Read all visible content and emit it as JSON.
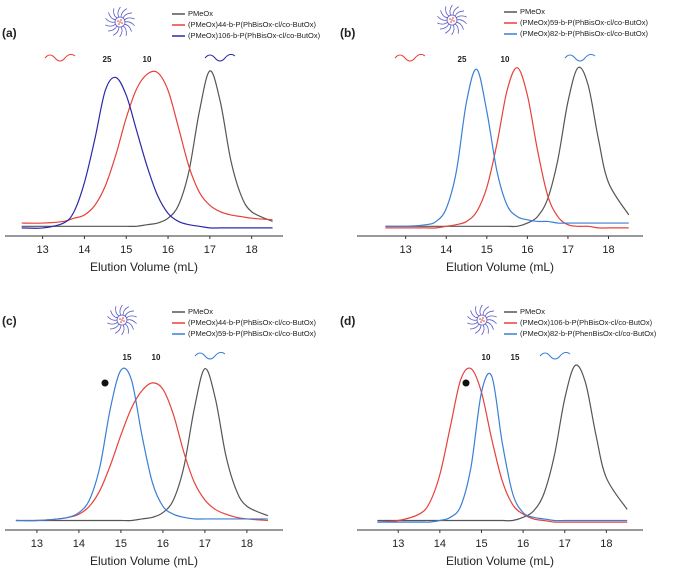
{
  "chart_data": [
    {
      "type": "line",
      "panel_label": "(a)",
      "xlabel": "Elution Volume (mL)",
      "xlim": [
        12.1,
        18.75
      ],
      "xticks": [
        13,
        14,
        15,
        16,
        17,
        18
      ],
      "ylim": [
        -0.05,
        1.05
      ],
      "x": [
        12.5,
        13,
        13.5,
        13.75,
        14,
        14.25,
        14.5,
        14.75,
        15,
        15.25,
        15.5,
        15.75,
        16,
        16.25,
        16.5,
        16.75,
        17,
        17.25,
        17.5,
        17.75,
        18,
        18.5
      ],
      "annotations": [
        "25",
        "10"
      ],
      "series": [
        {
          "name": "PMeOx",
          "color": "#555555",
          "values": [
            0.01,
            0.01,
            0.01,
            0.01,
            0.01,
            0.01,
            0.01,
            0.01,
            0.01,
            0.01,
            0.02,
            0.03,
            0.06,
            0.14,
            0.35,
            0.72,
            0.97,
            0.78,
            0.42,
            0.2,
            0.1,
            0.04
          ]
        },
        {
          "name": "(PMeOx)44-b-P(PhBisOx-cl/co-ButOx)",
          "color": "#e8403a",
          "values": [
            0.03,
            0.03,
            0.04,
            0.06,
            0.08,
            0.14,
            0.26,
            0.45,
            0.68,
            0.86,
            0.95,
            0.96,
            0.85,
            0.62,
            0.38,
            0.22,
            0.14,
            0.1,
            0.08,
            0.07,
            0.06,
            0.05
          ]
        },
        {
          "name": "(PMeOx)106-b-P(PhBisOx-cl/co-ButOx)",
          "color": "#2a2aa8",
          "values": [
            0,
            0,
            0.03,
            0.1,
            0.28,
            0.55,
            0.85,
            0.93,
            0.82,
            0.6,
            0.38,
            0.2,
            0.09,
            0.04,
            0.02,
            0.01,
            0,
            0,
            0,
            0,
            0,
            0
          ]
        }
      ]
    },
    {
      "type": "line",
      "panel_label": "(b)",
      "xlabel": "Elution Volume (mL)",
      "xlim": [
        11.8,
        18.85
      ],
      "xticks": [
        13,
        14,
        15,
        16,
        17,
        18
      ],
      "ylim": [
        -0.05,
        1.05
      ],
      "x": [
        12.5,
        13,
        13.5,
        13.75,
        14,
        14.25,
        14.5,
        14.75,
        15,
        15.25,
        15.5,
        15.75,
        16,
        16.25,
        16.5,
        16.75,
        17,
        17.25,
        17.5,
        17.75,
        18,
        18.5
      ],
      "annotations": [
        "25",
        "10"
      ],
      "series": [
        {
          "name": "PMeOx",
          "color": "#555555",
          "values": [
            0.01,
            0.01,
            0.01,
            0.01,
            0.01,
            0.01,
            0.01,
            0.01,
            0.01,
            0.01,
            0.01,
            0.01,
            0.03,
            0.07,
            0.18,
            0.42,
            0.78,
            0.99,
            0.88,
            0.55,
            0.28,
            0.08
          ]
        },
        {
          "name": "(PMeOx)59-b-P(PhBisOx-cl/co-ButOx)",
          "color": "#e8403a",
          "values": [
            0,
            0,
            0,
            0,
            0.01,
            0.02,
            0.04,
            0.1,
            0.25,
            0.52,
            0.85,
            0.99,
            0.82,
            0.48,
            0.2,
            0.07,
            0.02,
            0.01,
            0.01,
            0,
            0,
            0
          ]
        },
        {
          "name": "(PMeOx)82-b-P(PhBisOx-cl/co-ButOx)",
          "color": "#3a7fd5",
          "values": [
            0.01,
            0.01,
            0.02,
            0.04,
            0.12,
            0.35,
            0.78,
            0.98,
            0.72,
            0.35,
            0.14,
            0.07,
            0.05,
            0.04,
            0.04,
            0.03,
            0.03,
            0.03,
            0.03,
            0.03,
            0.03,
            0.03
          ]
        }
      ]
    },
    {
      "type": "line",
      "panel_label": "(c)",
      "xlabel": "Elution Volume (mL)",
      "xlim": [
        12.24,
        18.86
      ],
      "xticks": [
        13,
        14,
        15,
        16,
        17,
        18
      ],
      "ylim": [
        -0.05,
        1.05
      ],
      "x": [
        12.5,
        13,
        13.5,
        13.75,
        14,
        14.25,
        14.5,
        14.75,
        15,
        15.25,
        15.5,
        15.75,
        16,
        16.25,
        16.5,
        16.75,
        17,
        17.25,
        17.5,
        17.75,
        18,
        18.5
      ],
      "annotations": [
        "15",
        "10"
      ],
      "series": [
        {
          "name": "PMeOx",
          "color": "#555555",
          "values": [
            0.01,
            0.01,
            0.01,
            0.01,
            0.01,
            0.01,
            0.01,
            0.01,
            0.01,
            0.01,
            0.02,
            0.03,
            0.06,
            0.14,
            0.35,
            0.72,
            0.97,
            0.78,
            0.42,
            0.2,
            0.1,
            0.04
          ]
        },
        {
          "name": "(PMeOx)44-b-P(PhBisOx-cl/co-ButOx)",
          "color": "#e8403a",
          "values": [
            0.01,
            0.01,
            0.02,
            0.03,
            0.05,
            0.1,
            0.2,
            0.36,
            0.55,
            0.72,
            0.83,
            0.88,
            0.84,
            0.68,
            0.44,
            0.25,
            0.14,
            0.08,
            0.05,
            0.03,
            0.02,
            0.01
          ]
        },
        {
          "name": "(PMeOx)59-b-P(PhBisOx-cl/co-ButOx)",
          "color": "#3a7fd5",
          "values": [
            0.01,
            0.01,
            0.02,
            0.03,
            0.06,
            0.14,
            0.35,
            0.72,
            0.96,
            0.9,
            0.55,
            0.25,
            0.1,
            0.05,
            0.03,
            0.02,
            0.02,
            0.02,
            0.02,
            0.02,
            0.02,
            0.02
          ]
        }
      ]
    },
    {
      "type": "line",
      "panel_label": "(d)",
      "xlabel": "Elution Volume (mL)",
      "xlim": [
        12.01,
        18.88
      ],
      "xticks": [
        13,
        14,
        15,
        16,
        17,
        18
      ],
      "ylim": [
        -0.05,
        1.05
      ],
      "x": [
        12.5,
        13,
        13.5,
        13.75,
        14,
        14.25,
        14.5,
        14.75,
        15,
        15.25,
        15.5,
        15.75,
        16,
        16.25,
        16.5,
        16.75,
        17,
        17.25,
        17.5,
        17.75,
        18,
        18.5
      ],
      "annotations": [
        "10",
        "15"
      ],
      "series": [
        {
          "name": "PMeOx",
          "color": "#555555",
          "values": [
            0.01,
            0.01,
            0.01,
            0.01,
            0.01,
            0.01,
            0.01,
            0.01,
            0.01,
            0.01,
            0.01,
            0.01,
            0.03,
            0.07,
            0.18,
            0.42,
            0.78,
            0.99,
            0.88,
            0.55,
            0.28,
            0.08
          ]
        },
        {
          "name": "(PMeOx)106-b-P(PhBisOx-cl/co-ButOx)",
          "color": "#e8403a",
          "values": [
            0,
            0.01,
            0.05,
            0.12,
            0.3,
            0.6,
            0.9,
            0.97,
            0.82,
            0.52,
            0.26,
            0.11,
            0.05,
            0.02,
            0.01,
            0,
            0,
            0,
            0,
            0,
            0,
            0
          ]
        },
        {
          "name": "(PMeOx)82-b-P(PhenBisOx-cl/co-ButOx)",
          "color": "#3a7fd5",
          "values": [
            0,
            0,
            0,
            0,
            0.01,
            0.03,
            0.1,
            0.35,
            0.82,
            0.92,
            0.5,
            0.18,
            0.06,
            0.03,
            0.02,
            0.01,
            0.01,
            0.01,
            0.01,
            0.01,
            0.01,
            0.01
          ]
        }
      ]
    }
  ]
}
